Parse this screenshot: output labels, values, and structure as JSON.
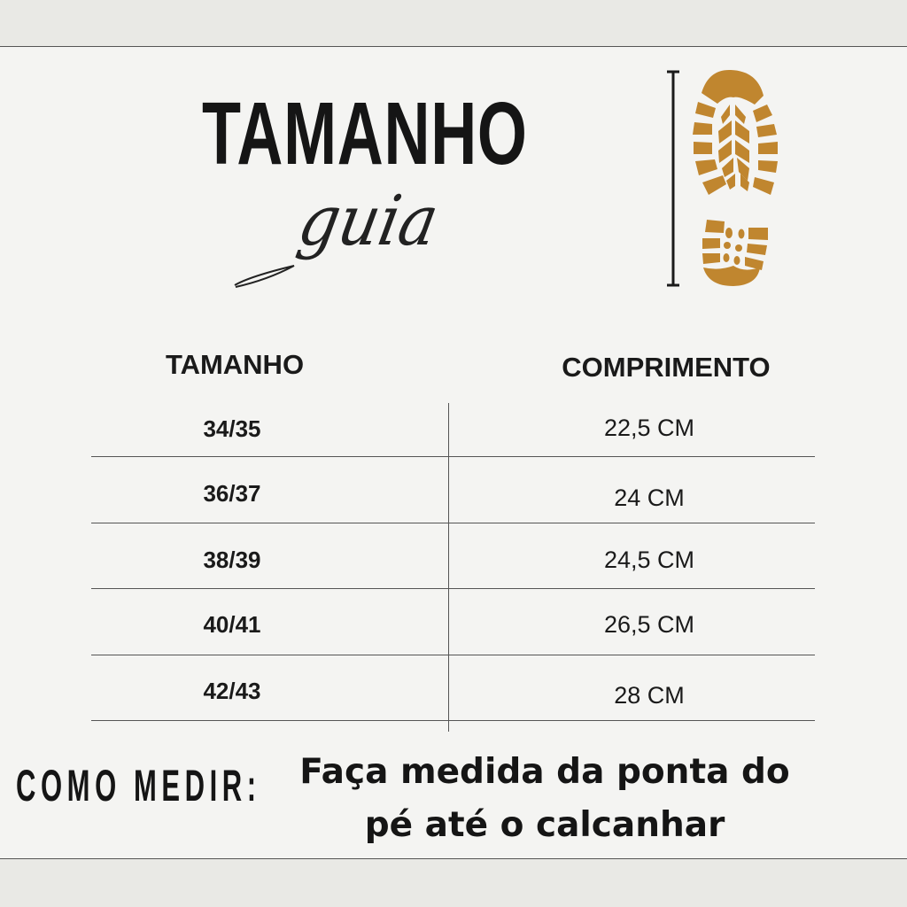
{
  "header": {
    "title": "TAMANHO",
    "subtitle": "guia",
    "icon": "shoe-sole-icon",
    "accent_color": "#C0862F"
  },
  "table": {
    "columns": [
      "TAMANHO",
      "COMPRIMENTO"
    ],
    "rows": [
      {
        "size": "34/35",
        "length": "22,5 CM"
      },
      {
        "size": "36/37",
        "length": "24 CM"
      },
      {
        "size": "38/39",
        "length": "24,5 CM"
      },
      {
        "size": "40/41",
        "length": "26,5 CM"
      },
      {
        "size": "42/43",
        "length": "28 CM"
      }
    ]
  },
  "footer": {
    "label": "COMO MEDIR:",
    "instruction_line1": "Faça medida da ponta do",
    "instruction_line2": "pé até o calcanhar"
  }
}
